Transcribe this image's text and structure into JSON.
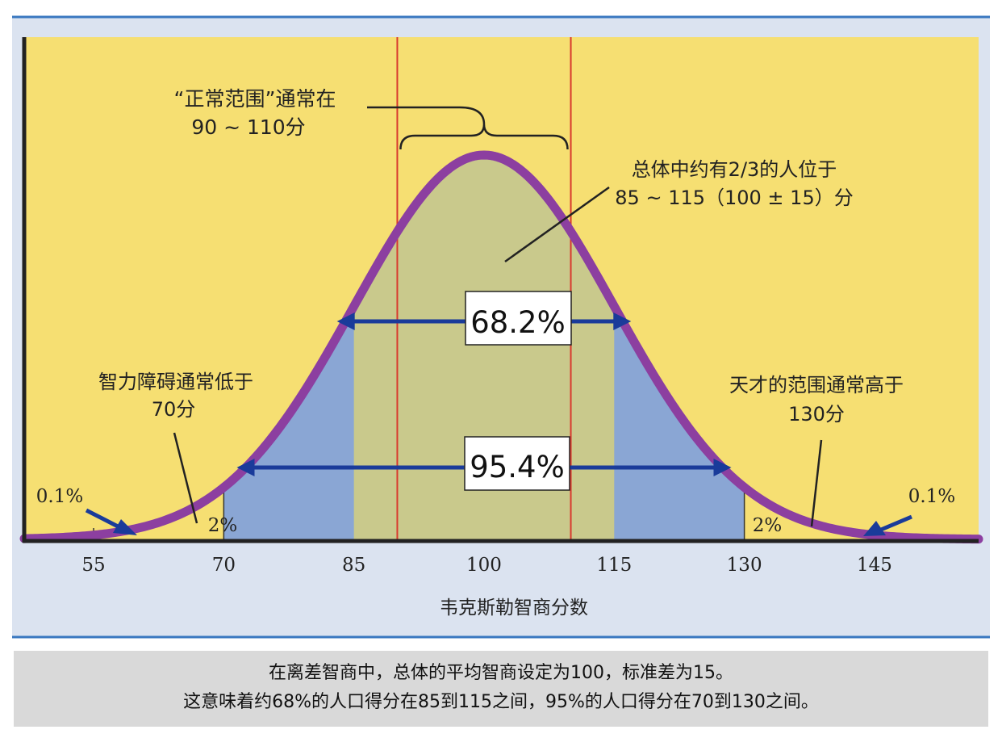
{
  "chart_data": {
    "type": "area",
    "xlabel": "韦克斯勒智商分数",
    "x_ticks": [
      55,
      70,
      85,
      100,
      115,
      130,
      145
    ],
    "xlim": [
      47,
      157
    ],
    "mean": 100,
    "sd": 15,
    "normal_range": [
      90,
      110
    ],
    "bands": [
      {
        "range": [
          85,
          115
        ],
        "percent_label": "68.2%",
        "color": "#c9c98c"
      },
      {
        "range": [
          70,
          130
        ],
        "percent_label": "95.4%",
        "color": "#8aa6d4"
      }
    ],
    "tail_labels": {
      "left_2pct": "2%",
      "right_2pct": "2%",
      "left_01pct": "0.1%",
      "right_01pct": "0.1%"
    },
    "annotations": {
      "normal_range_l1": "“正常范围”通常在",
      "normal_range_l2": "90 ~ 110分",
      "two_thirds_l1": "总体中约有2/3的人位于",
      "two_thirds_l2": "85 ~ 115（100 ± 15）分",
      "disability_l1": "智力障碍通常低于",
      "disability_l2": "70分",
      "genius_l1": "天才的范围通常高于",
      "genius_l2": "130分"
    },
    "colors": {
      "background": "#f6df72",
      "curve": "#8c3fa0",
      "center_band": "#c9c98c",
      "outer_band": "#8aa6d4",
      "arrows": "#1a3b9a",
      "vlines": "#d83a2e",
      "frame": "#dbe3f0",
      "border": "#3a78c0"
    }
  },
  "caption": {
    "line1": "在离差智商中，总体的平均智商设定为100，标准差为15。",
    "line2": "这意味着约68%的人口得分在85到115之间，95%的人口得分在70到130之间。"
  }
}
